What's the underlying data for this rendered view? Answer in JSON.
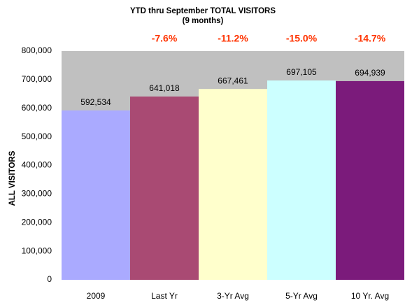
{
  "chart_data": {
    "type": "bar",
    "title": "YTD thru September TOTAL VISITORS",
    "subtitle": "(9 months)",
    "y_label": "ALL VISITORS",
    "categories": [
      "2009",
      "Last Yr",
      "3-Yr Avg",
      "5-Yr Avg",
      "10 Yr. Avg"
    ],
    "values": [
      592534,
      641018,
      667461,
      697105,
      694939
    ],
    "value_labels": [
      "592,534",
      "641,018",
      "667,461",
      "697,105",
      "694,939"
    ],
    "colors": [
      "#aaaaff",
      "#a94a73",
      "#ffffcc",
      "#ccffff",
      "#7b1b7b"
    ],
    "change_labels": [
      null,
      "-7.6%",
      "-11.2%",
      "-15.0%",
      "-14.7%"
    ],
    "plot_background": "#c0c0c0",
    "ylim": [
      0,
      800000
    ],
    "yticks": [
      0,
      {
        "value": 100000,
        "label": "100,000"
      },
      {
        "value": 200000,
        "label": "200,000"
      },
      {
        "value": 300000,
        "label": "300,000"
      },
      {
        "value": 400000,
        "label": "400,000"
      },
      {
        "value": 500000,
        "label": "500,000"
      },
      {
        "value": 600000,
        "label": "600,000"
      },
      {
        "value": 700000,
        "label": "700,000"
      },
      {
        "value": 800000,
        "label": "800,000"
      }
    ],
    "grid": false
  }
}
